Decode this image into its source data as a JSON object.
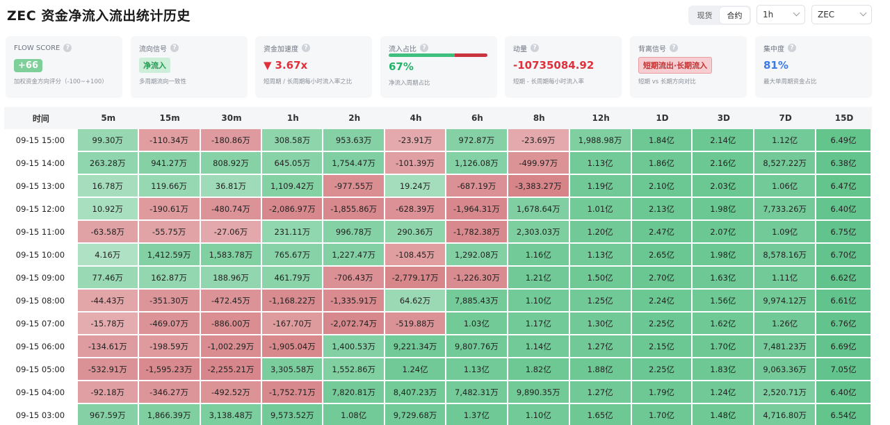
{
  "title": "ZEC 资金净流入流出统计历史",
  "market_toggle": {
    "options": [
      "现货",
      "合约"
    ],
    "active": 1
  },
  "interval_select": {
    "value": "1h"
  },
  "symbol_select": {
    "value": "ZEC"
  },
  "cards": {
    "flow_score": {
      "label": "FLOW SCORE",
      "value": "+66",
      "sub": "加权资金方向评分（-100~+100）"
    },
    "flow_signal": {
      "label": "流向信号",
      "value": "净流入",
      "sub": "多周期流向一致性"
    },
    "acceleration": {
      "label": "资金加速度",
      "arrow": "▼",
      "value": "3.67x",
      "sub": "短周期 / 长周期每小时流入率之比"
    },
    "inflow_ratio": {
      "label": "流入占比",
      "value": "67%",
      "fraction": 0.67,
      "sub": "净流入周期占比"
    },
    "momentum": {
      "label": "动量",
      "value": "-10735084.92",
      "sub": "短期 - 长周期每小时流入率"
    },
    "divergence": {
      "label": "背离信号",
      "value": "短期流出·长期流入",
      "sub": "短期 vs 长期方向对比"
    },
    "concentration": {
      "label": "集中度",
      "value": "81%",
      "sub": "最大单周期资金占比"
    }
  },
  "table": {
    "headers": [
      "时间",
      "5m",
      "15m",
      "30m",
      "1h",
      "2h",
      "4h",
      "6h",
      "8h",
      "12h",
      "1D",
      "3D",
      "7D",
      "15D"
    ],
    "rows": [
      {
        "time": "09-15 15:00",
        "cells": [
          "99.30万",
          "-110.34万",
          "-180.86万",
          "308.58万",
          "953.63万",
          "-23.91万",
          "972.87万",
          "-23.69万",
          "1,988.98万",
          "1.84亿",
          "2.14亿",
          "1.12亿",
          "6.49亿"
        ]
      },
      {
        "time": "09-15 14:00",
        "cells": [
          "263.28万",
          "941.27万",
          "808.92万",
          "645.05万",
          "1,754.47万",
          "-101.39万",
          "1,126.08万",
          "-499.97万",
          "1.13亿",
          "1.86亿",
          "2.16亿",
          "8,527.22万",
          "6.38亿"
        ]
      },
      {
        "time": "09-15 13:00",
        "cells": [
          "16.78万",
          "119.66万",
          "36.81万",
          "1,109.42万",
          "-977.55万",
          "19.24万",
          "-687.19万",
          "-3,383.27万",
          "1.19亿",
          "2.10亿",
          "2.03亿",
          "1.06亿",
          "6.47亿"
        ]
      },
      {
        "time": "09-15 12:00",
        "cells": [
          "10.92万",
          "-190.61万",
          "-480.74万",
          "-2,086.97万",
          "-1,855.86万",
          "-628.39万",
          "-1,964.31万",
          "1,678.64万",
          "1.01亿",
          "2.13亿",
          "1.98亿",
          "7,733.26万",
          "6.40亿"
        ]
      },
      {
        "time": "09-15 11:00",
        "cells": [
          "-63.58万",
          "-55.75万",
          "-27.06万",
          "231.11万",
          "996.78万",
          "290.36万",
          "-1,782.38万",
          "2,303.03万",
          "1.20亿",
          "2.47亿",
          "2.07亿",
          "1.09亿",
          "6.75亿"
        ]
      },
      {
        "time": "09-15 10:00",
        "cells": [
          "4.16万",
          "1,412.59万",
          "1,583.78万",
          "765.67万",
          "1,227.47万",
          "-108.45万",
          "1,292.08万",
          "1.16亿",
          "1.13亿",
          "2.65亿",
          "1.98亿",
          "8,578.16万",
          "6.70亿"
        ]
      },
      {
        "time": "09-15 09:00",
        "cells": [
          "77.46万",
          "162.87万",
          "188.96万",
          "461.79万",
          "-706.43万",
          "-2,779.17万",
          "-1,226.30万",
          "1.21亿",
          "1.50亿",
          "2.70亿",
          "1.63亿",
          "1.11亿",
          "6.62亿"
        ]
      },
      {
        "time": "09-15 08:00",
        "cells": [
          "-44.43万",
          "-351.30万",
          "-472.45万",
          "-1,168.22万",
          "-1,335.91万",
          "64.62万",
          "7,885.43万",
          "1.10亿",
          "1.25亿",
          "2.24亿",
          "1.56亿",
          "9,974.12万",
          "6.61亿"
        ]
      },
      {
        "time": "09-15 07:00",
        "cells": [
          "-15.78万",
          "-469.07万",
          "-886.00万",
          "-167.70万",
          "-2,072.74万",
          "-519.88万",
          "1.03亿",
          "1.17亿",
          "1.30亿",
          "2.25亿",
          "1.62亿",
          "1.26亿",
          "6.76亿"
        ]
      },
      {
        "time": "09-15 06:00",
        "cells": [
          "-134.61万",
          "-198.59万",
          "-1,002.29万",
          "-1,905.04万",
          "1,400.53万",
          "9,221.34万",
          "9,807.76万",
          "1.14亿",
          "1.27亿",
          "2.15亿",
          "1.70亿",
          "7,481.23万",
          "6.69亿"
        ]
      },
      {
        "time": "09-15 05:00",
        "cells": [
          "-532.91万",
          "-1,595.23万",
          "-2,255.21万",
          "3,305.58万",
          "1,552.86万",
          "1.24亿",
          "1.13亿",
          "1.82亿",
          "1.88亿",
          "2.25亿",
          "1.83亿",
          "9,063.36万",
          "7.05亿"
        ]
      },
      {
        "time": "09-15 04:00",
        "cells": [
          "-92.18万",
          "-346.27万",
          "-492.52万",
          "-1,752.71万",
          "7,820.81万",
          "8,407.23万",
          "7,482.31万",
          "9,890.35万",
          "1.27亿",
          "1.79亿",
          "1.24亿",
          "2,520.71万",
          "6.40亿"
        ]
      },
      {
        "time": "09-15 03:00",
        "cells": [
          "967.59万",
          "1,866.39万",
          "3,138.48万",
          "9,573.52万",
          "1.08亿",
          "9,729.68万",
          "1.37亿",
          "1.10亿",
          "1.65亿",
          "1.70亿",
          "1.48亿",
          "4,716.80万",
          "6.54亿"
        ]
      }
    ]
  }
}
